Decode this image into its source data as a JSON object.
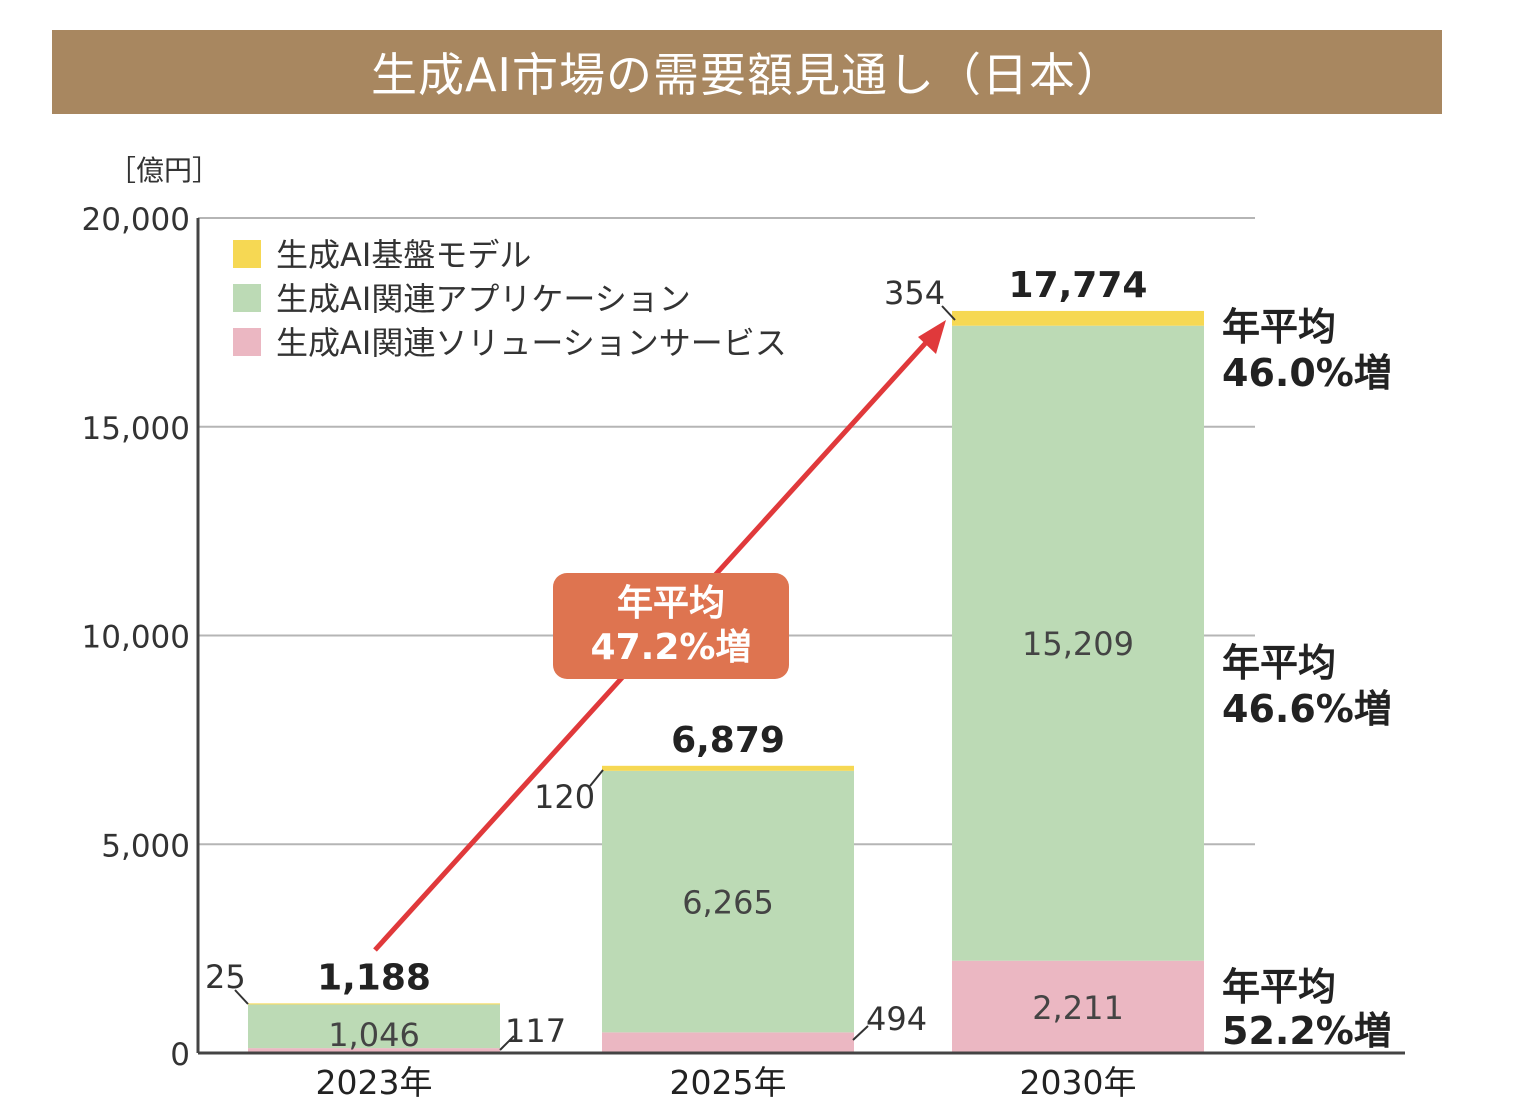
{
  "title": "生成AI市場の需要額見通し（日本）",
  "chart_data": {
    "type": "bar",
    "stacked": true,
    "title": "生成AI市場の需要額見通し（日本）",
    "unit_label": "［億円］",
    "ylim": [
      0,
      20000
    ],
    "y_ticks": [
      0,
      5000,
      10000,
      15000,
      20000
    ],
    "y_tick_labels": [
      "0",
      "5,000",
      "10,000",
      "15,000",
      "20,000"
    ],
    "categories": [
      "2023年",
      "2025年",
      "2030年"
    ],
    "series": [
      {
        "name": "生成AI関連ソリューションサービス",
        "color": "#ebb7c2",
        "values": [
          117,
          494,
          2211
        ],
        "labels": [
          "117",
          "494",
          "2,211"
        ]
      },
      {
        "name": "生成AI関連アプリケーション",
        "color": "#bcdab5",
        "values": [
          1046,
          6265,
          15209
        ],
        "labels": [
          "1,046",
          "6,265",
          "15,209"
        ]
      },
      {
        "name": "生成AI基盤モデル",
        "color": "#f6d853",
        "values": [
          25,
          120,
          354
        ],
        "labels": [
          "25",
          "120",
          "354"
        ]
      }
    ],
    "totals": [
      1188,
      6879,
      17774
    ],
    "total_labels": [
      "1,188",
      "6,879",
      "17,774"
    ],
    "legend": {
      "placement": "top-left",
      "items": [
        {
          "label": "生成AI基盤モデル",
          "color": "#f6d853"
        },
        {
          "label": "生成AI関連アプリケーション",
          "color": "#bcdab5"
        },
        {
          "label": "生成AI関連ソリューションサービス",
          "color": "#ebb7c2"
        }
      ]
    },
    "trend_annotation": {
      "line1": "年平均",
      "line2": "47.2%増",
      "color": "#de7450",
      "arrow_color": "#e0393b"
    },
    "side_annotations": [
      {
        "series": "生成AI基盤モデル",
        "line1": "年平均",
        "line2": "46.0%増"
      },
      {
        "series": "生成AI関連アプリケーション",
        "line1": "年平均",
        "line2": "46.6%増"
      },
      {
        "series": "生成AI関連ソリューションサービス",
        "line1": "年平均",
        "line2": "52.2%増"
      }
    ]
  }
}
